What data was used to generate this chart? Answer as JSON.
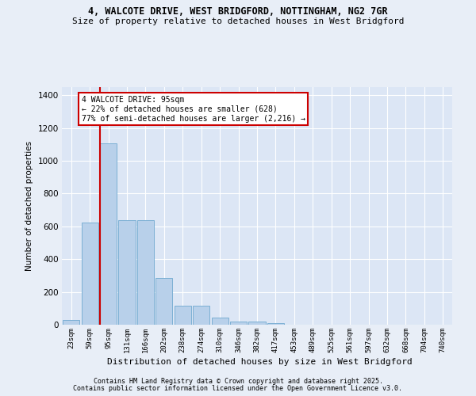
{
  "title1": "4, WALCOTE DRIVE, WEST BRIDGFORD, NOTTINGHAM, NG2 7GR",
  "title2": "Size of property relative to detached houses in West Bridgford",
  "xlabel": "Distribution of detached houses by size in West Bridgford",
  "ylabel": "Number of detached properties",
  "bar_color": "#b8d0ea",
  "bar_edge_color": "#7bafd4",
  "highlight_line_color": "#cc0000",
  "annotation_text": "4 WALCOTE DRIVE: 95sqm\n← 22% of detached houses are smaller (628)\n77% of semi-detached houses are larger (2,216) →",
  "categories": [
    "23sqm",
    "59sqm",
    "95sqm",
    "131sqm",
    "166sqm",
    "202sqm",
    "238sqm",
    "274sqm",
    "310sqm",
    "346sqm",
    "382sqm",
    "417sqm",
    "453sqm",
    "489sqm",
    "525sqm",
    "561sqm",
    "597sqm",
    "632sqm",
    "668sqm",
    "704sqm",
    "740sqm"
  ],
  "values": [
    28,
    625,
    1105,
    640,
    640,
    285,
    115,
    115,
    45,
    20,
    20,
    10,
    0,
    0,
    0,
    0,
    0,
    0,
    0,
    0,
    0
  ],
  "ylim": [
    0,
    1450
  ],
  "yticks": [
    0,
    200,
    400,
    600,
    800,
    1000,
    1200,
    1400
  ],
  "fig_bg_color": "#e8eef7",
  "ax_bg_color": "#dce6f5",
  "grid_color": "#ffffff",
  "footer1": "Contains HM Land Registry data © Crown copyright and database right 2025.",
  "footer2": "Contains public sector information licensed under the Open Government Licence v3.0."
}
